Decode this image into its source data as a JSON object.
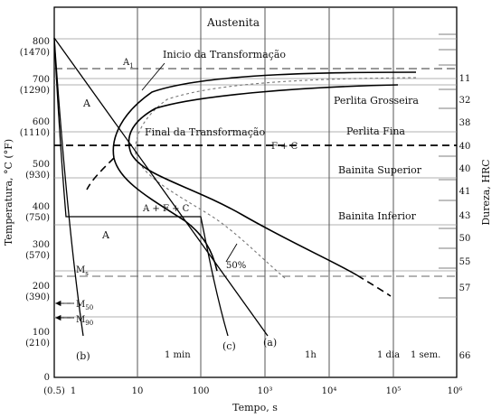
{
  "axes": {
    "y_label": "Temperatura, °C (°F)",
    "x_label": "Tempo, s",
    "right_label": "Dureza, HRC",
    "y_ticks": [
      {
        "c": "800",
        "f": "(1470)"
      },
      {
        "c": "700",
        "f": "(1290)"
      },
      {
        "c": "600",
        "f": "(1110)"
      },
      {
        "c": "500",
        "f": "(930)"
      },
      {
        "c": "400",
        "f": "(750)"
      },
      {
        "c": "300",
        "f": "(570)"
      },
      {
        "c": "200",
        "f": "(390)"
      },
      {
        "c": "100",
        "f": "(210)"
      },
      {
        "c": "0",
        "f": ""
      }
    ],
    "x_ticks": [
      "(0.5)",
      "1",
      "10",
      "100",
      "10³",
      "10⁴",
      "10⁵",
      "10⁶"
    ],
    "hardness_ticks": [
      "11",
      "32",
      "38",
      "40",
      "40",
      "41",
      "43",
      "50",
      "55",
      "57",
      "66"
    ]
  },
  "labels": {
    "austenita": "Austenita",
    "a1": "A",
    "a1_sub": "1",
    "inicio": "Inicio da Transformação",
    "final": "Final da Transformação",
    "a_upper": "A",
    "a_lower": "A",
    "fc": "F + C",
    "afc": "A + F + C",
    "perlita_grosseira": "Perlita Grosseira",
    "perlita_fina": "Perlita Fina",
    "bainita_superior": "Bainita Superior",
    "bainita_inferior": "Bainita Inferior",
    "pct50": "50%",
    "ms": "M",
    "ms_sub": "s",
    "m50": "M",
    "m50_sub": "50",
    "m90": "M",
    "m90_sub": "90",
    "curve_a": "(a)",
    "curve_b": "(b)",
    "curve_c": "(c)",
    "t_1min": "1 min",
    "t_1h": "1h",
    "t_1dia": "1 dia",
    "t_1sem": "1 sem."
  }
}
